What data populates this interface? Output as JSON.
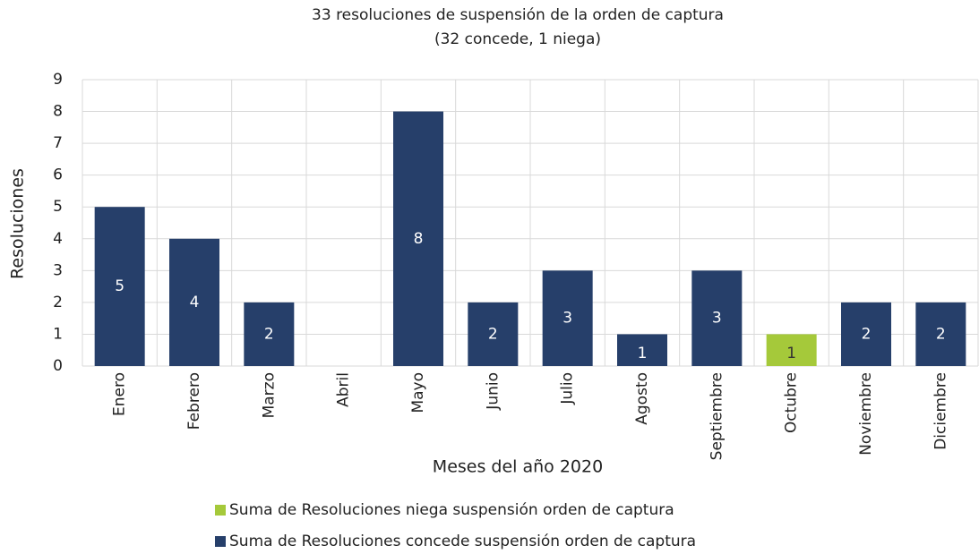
{
  "chart_data": {
    "type": "bar",
    "stacked": true,
    "title": "33 resoluciones de suspensión de la orden de captura",
    "subtitle": "(32 concede, 1 niega)",
    "x_label": "Meses del año 2020",
    "y_label": "Resoluciones",
    "categories": [
      "Enero",
      "Febrero",
      "Marzo",
      "Abril",
      "Mayo",
      "Junio",
      "Julio",
      "Agosto",
      "Septiembre",
      "Octubre",
      "Noviembre",
      "Diciembre"
    ],
    "series": [
      {
        "name": "Suma de Resoluciones niega suspensión orden de captura",
        "color": "#a5c93a",
        "label_color": "#333333",
        "values": [
          null,
          null,
          null,
          null,
          null,
          null,
          null,
          null,
          null,
          1,
          null,
          null
        ]
      },
      {
        "name": "Suma de Resoluciones concede suspensión orden de captura",
        "color": "#263f6a",
        "label_color": "#ffffff",
        "values": [
          5,
          4,
          2,
          null,
          8,
          2,
          3,
          1,
          3,
          null,
          2,
          2
        ]
      }
    ],
    "ylim": [
      0,
      9
    ],
    "yticks": [
      0,
      1,
      2,
      3,
      4,
      5,
      6,
      7,
      8,
      9
    ],
    "grid": true,
    "legend": "bottom"
  }
}
